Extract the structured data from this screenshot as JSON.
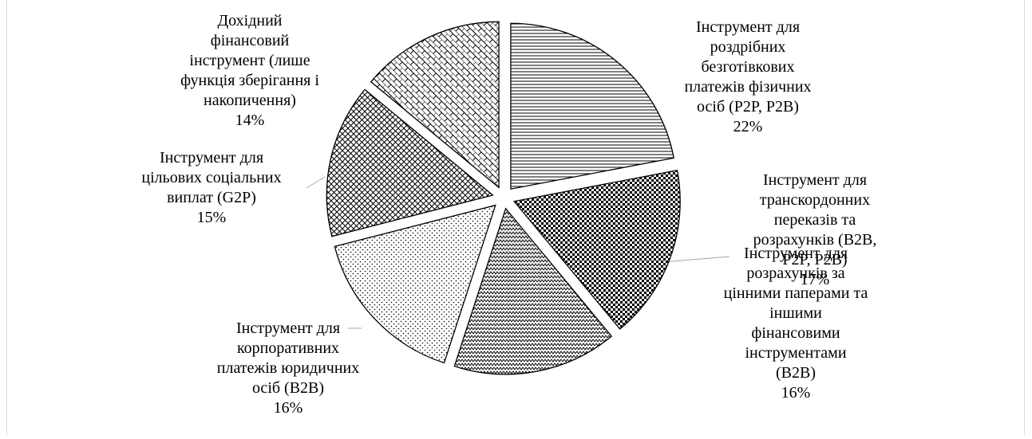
{
  "chart_data": {
    "type": "pie",
    "exploded": true,
    "title": "",
    "slices": [
      {
        "lines": [
          "Інструмент для",
          "роздрібних",
          "безготівкових",
          "платежів фізичних",
          "осіб (P2P, P2B)"
        ],
        "value": 22,
        "pct": "22%",
        "pattern": "horizontal-lines"
      },
      {
        "lines": [
          "Інструмент для",
          "транскордонних",
          "переказів та",
          "розрахунків (B2B,",
          "P2P, P2B)"
        ],
        "value": 17,
        "pct": "17%",
        "pattern": "checker"
      },
      {
        "lines": [
          "Інструмент для",
          "розрахунків за",
          "цінними паперами та",
          "іншими",
          "фінансовими",
          "інструментами",
          "(B2B)"
        ],
        "value": 16,
        "pct": "16%",
        "pattern": "zigzag"
      },
      {
        "lines": [
          "Інструмент для",
          "корпоративних",
          "платежів юридичних",
          "осіб (B2B)"
        ],
        "value": 16,
        "pct": "16%",
        "pattern": "dots"
      },
      {
        "lines": [
          "Інструмент для",
          "цільових соціальних",
          "виплат (G2P)"
        ],
        "value": 15,
        "pct": "15%",
        "pattern": "crosshatch"
      },
      {
        "lines": [
          "Дохідний",
          "фінансовий",
          "інструмент (лише",
          "функція зберігання і",
          "накопичення)"
        ],
        "value": 14,
        "pct": "14%",
        "pattern": "bricks"
      }
    ]
  }
}
